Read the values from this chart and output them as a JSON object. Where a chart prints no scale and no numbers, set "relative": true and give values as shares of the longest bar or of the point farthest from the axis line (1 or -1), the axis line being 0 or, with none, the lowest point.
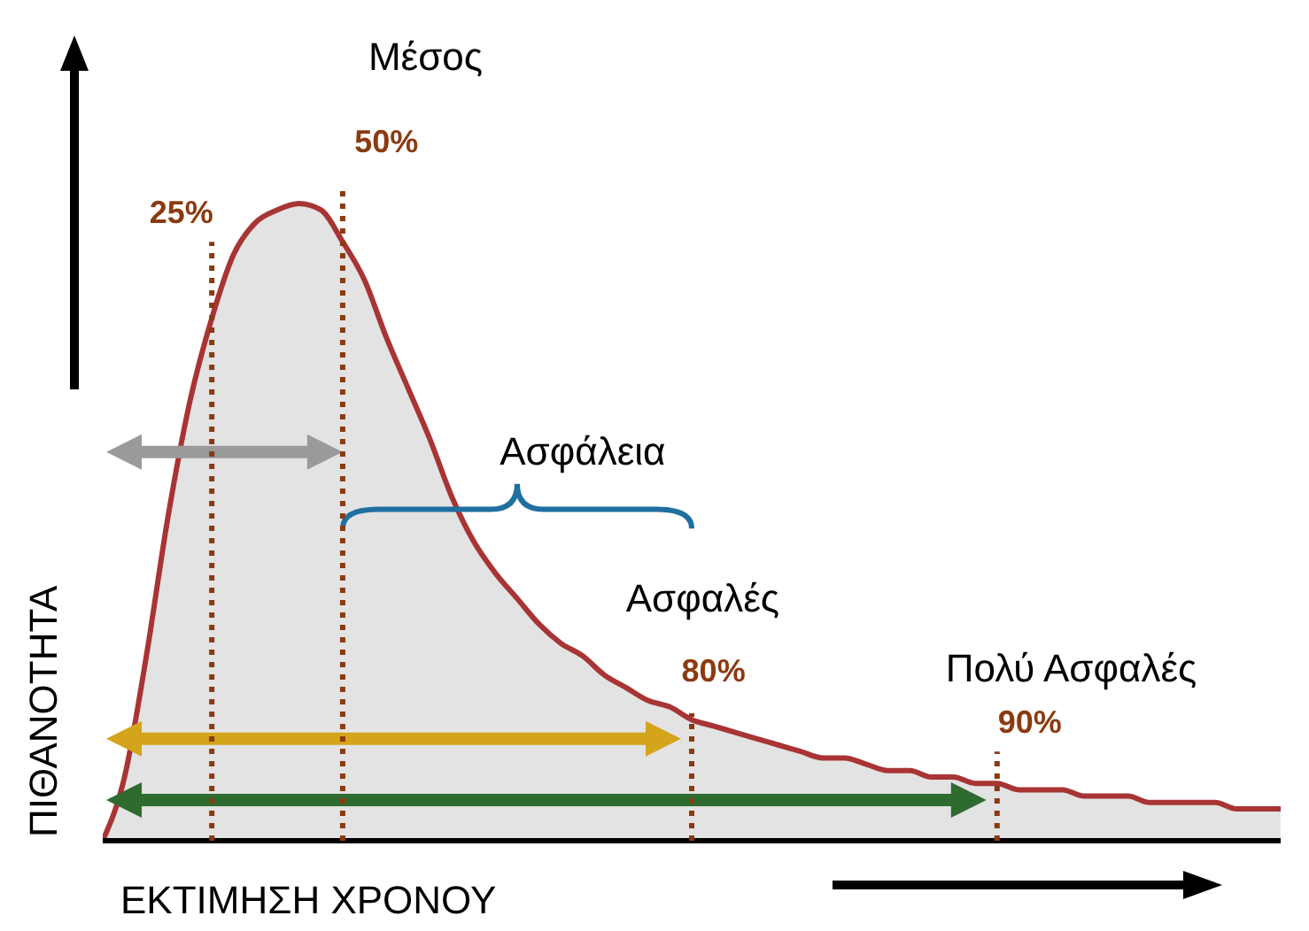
{
  "chart_data": {
    "type": "area",
    "relative": true,
    "xlabel": "ΕΚΤΙΜΗΣΗ ΧΡΟΝΟΥ",
    "ylabel": "ΠΙΘΑΝΟΤΗΤΑ",
    "categories": [
      null,
      null,
      null,
      null,
      null,
      null,
      null,
      null,
      null,
      null,
      null,
      null,
      null,
      null,
      null,
      null,
      null,
      null,
      null,
      null,
      null,
      null,
      null,
      null,
      null,
      null,
      null,
      null,
      null,
      null,
      null,
      null,
      null,
      null,
      null,
      null,
      null,
      null,
      null,
      null,
      null,
      null,
      null,
      null,
      null,
      null,
      null,
      null,
      null,
      null,
      null,
      null,
      null,
      null,
      null
    ],
    "series": [
      {
        "color": "#a83434",
        "values": [
          0,
          0.1,
          0.29,
          0.51,
          0.69,
          0.82,
          0.92,
          0.97,
          0.99,
          1,
          0.99,
          0.94,
          0.88,
          0.79,
          0.71,
          0.63,
          0.54,
          0.47,
          0.42,
          0.38,
          0.34,
          0.31,
          0.29,
          0.26,
          0.24,
          0.22,
          0.21,
          0.19,
          0.18,
          0.17,
          0.16,
          0.15,
          0.14,
          0.13,
          0.13,
          0.12,
          0.11,
          0.11,
          0.1,
          0.1,
          0.09,
          0.09,
          0.08,
          0.08,
          0.08,
          0.07,
          0.07,
          0.07,
          0.06,
          0.06,
          0.06,
          0.06,
          0.05,
          0.05,
          0.05
        ]
      }
    ],
    "annotations": [
      "Μέσος",
      "50%",
      "25%",
      "Ασφάλεια",
      "Ασφαλές",
      "80%",
      "Πολύ Ασφαλές",
      "90%"
    ],
    "grid": false,
    "legend": false
  }
}
